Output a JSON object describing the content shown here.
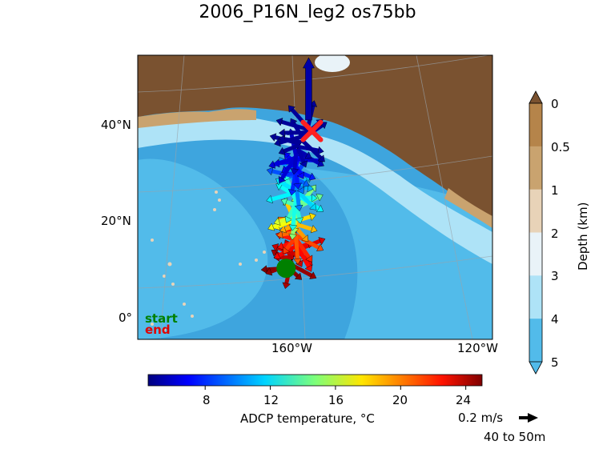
{
  "title": "2006_P16N_leg2 os75bb",
  "map": {
    "lat_ticks": [
      "40°N",
      "20°N",
      "0°"
    ],
    "lon_ticks": [
      "160°W",
      "120°W"
    ],
    "legend": {
      "start_label": "start",
      "end_label": "end",
      "start_color": "#008000",
      "end_color": "#e00000"
    },
    "start_marker": {
      "lon": -152,
      "lat": 10
    },
    "end_marker": {
      "lon": -148,
      "lat": 39
    }
  },
  "depth_colorbar": {
    "label": "Depth (km)",
    "ticks": [
      "0",
      "0.5",
      "1",
      "2",
      "3",
      "4",
      "5"
    ],
    "colors": [
      "#b5844a",
      "#c9a36f",
      "#e8d3b8",
      "#e9f3f8",
      "#aee3f7",
      "#52bbea",
      "#52bbea"
    ],
    "land_color": "#7a5230"
  },
  "temperature_colorbar": {
    "label": "ADCP temperature, °C",
    "ticks": [
      "8",
      "12",
      "16",
      "20",
      "24"
    ],
    "range": [
      4.5,
      25
    ]
  },
  "scale_arrow": {
    "speed_label": "0.2 m/s",
    "depth_label": "40 to 50m"
  },
  "chart_data": {
    "type": "scatter",
    "title": "2006_P16N_leg2 os75bb",
    "xlabel": "",
    "ylabel": "",
    "description_units": {
      "lon": "degrees",
      "lat": "degrees",
      "temperature": "°C"
    },
    "xlim": [
      -175,
      -120
    ],
    "ylim": [
      -5,
      55
    ],
    "series": [
      {
        "points": [
          {
            "lon": -152,
            "lat": 10,
            "temp": 25
          },
          {
            "lon": -151,
            "lat": 12,
            "temp": 24
          },
          {
            "lon": -150.5,
            "lat": 14,
            "temp": 23
          },
          {
            "lon": -150.5,
            "lat": 16,
            "temp": 22
          },
          {
            "lon": -150.5,
            "lat": 18,
            "temp": 20
          },
          {
            "lon": -150.5,
            "lat": 20,
            "temp": 18
          },
          {
            "lon": -150.5,
            "lat": 22,
            "temp": 15
          },
          {
            "lon": -150.5,
            "lat": 24,
            "temp": 13
          },
          {
            "lon": -150.5,
            "lat": 26,
            "temp": 12
          },
          {
            "lon": -150.5,
            "lat": 28,
            "temp": 10
          },
          {
            "lon": -150.5,
            "lat": 30,
            "temp": 8
          },
          {
            "lon": -150.5,
            "lat": 32,
            "temp": 7
          },
          {
            "lon": -150.5,
            "lat": 34,
            "temp": 6
          },
          {
            "lon": -150,
            "lat": 36,
            "temp": 5
          },
          {
            "lon": -149,
            "lat": 38,
            "temp": 5
          },
          {
            "lon": -148.5,
            "lat": 40,
            "temp": 5
          }
        ]
      }
    ]
  }
}
